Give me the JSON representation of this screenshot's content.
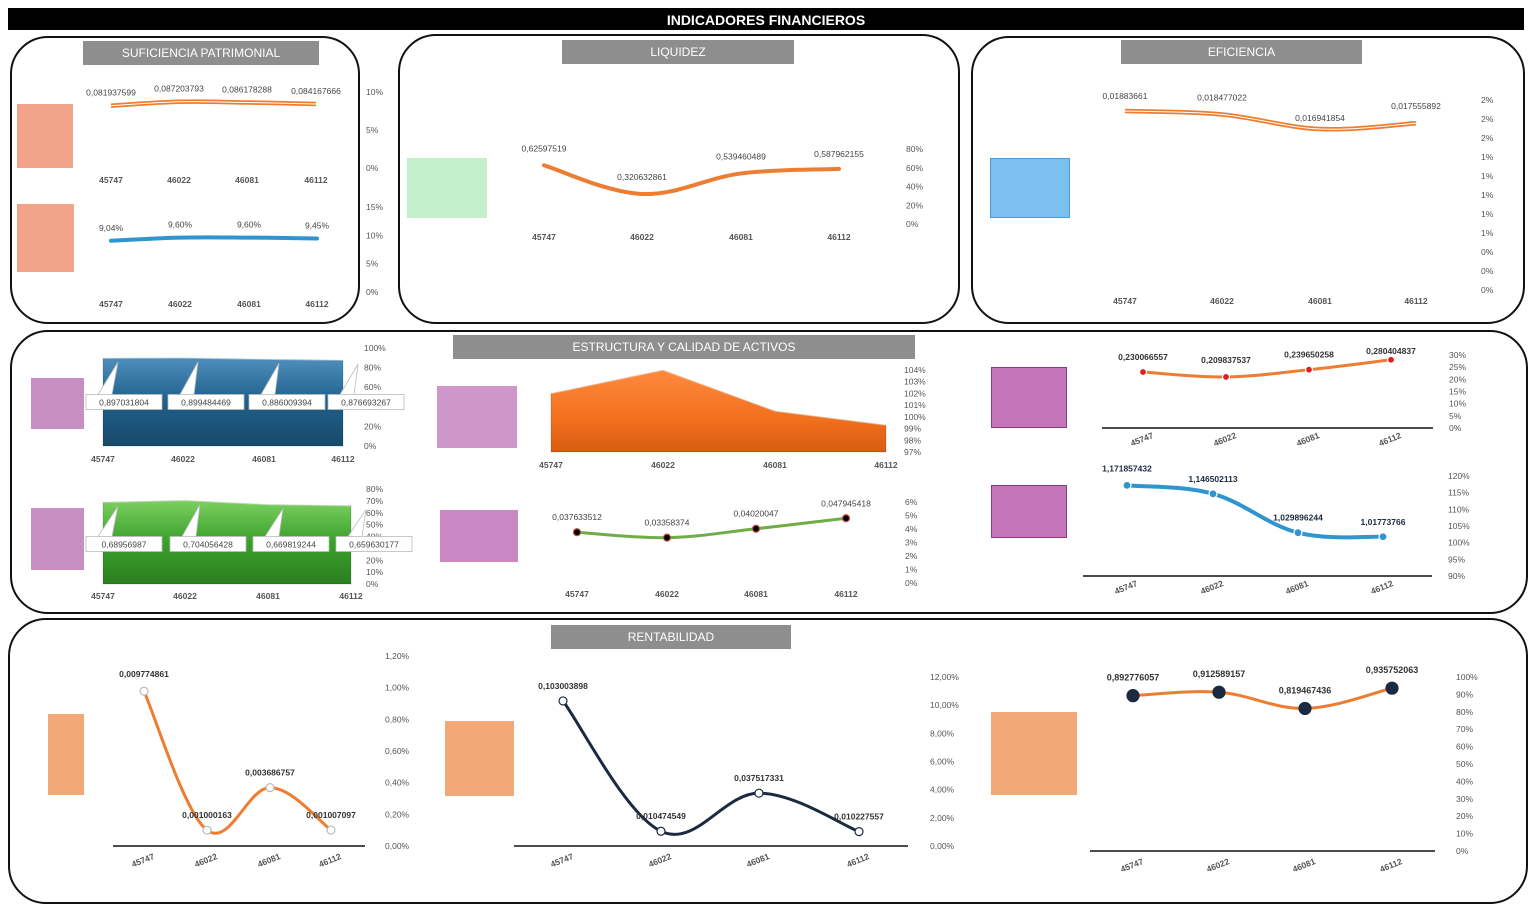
{
  "header": {
    "title": "INDICADORES FINANCIEROS"
  },
  "sections": {
    "suficiencia": "SUFICIENCIA PATRIMONIAL",
    "liquidez": "LIQUIDEZ",
    "eficiencia": "EFICIENCIA",
    "estructura": "ESTRUCTURA Y CALIDAD DE ACTIVOS",
    "rentabilidad": "RENTABILIDAD"
  },
  "colors": {
    "orange": "#ed7d31",
    "blue": "#2e95cf",
    "green": "#70ad47",
    "navy": "#1b2a41",
    "steel": "#1f5f8a",
    "bright_green": "#3aa02b",
    "salmon": "#f4a584",
    "mint": "#c3f0cb",
    "sky": "#7cc0ef",
    "mauve": "#c987c3",
    "peach": "#f3a877"
  },
  "chart_data": [
    {
      "id": "suf1",
      "type": "line",
      "categories": [
        "45747",
        "46022",
        "46081",
        "46112"
      ],
      "series": [
        {
          "values": [
            0.081937599,
            0.087203793,
            0.086178288,
            0.084167666
          ]
        }
      ],
      "labels": [
        "0,081937599",
        "0,087203793",
        "0,086178288",
        "0,084167666"
      ],
      "yticks": [
        "10%",
        "5%",
        "0%"
      ],
      "ylim": [
        0,
        0.1
      ]
    },
    {
      "id": "suf2",
      "type": "line",
      "categories": [
        "45747",
        "46022",
        "46081",
        "46112"
      ],
      "series": [
        {
          "values": [
            0.0904,
            0.096,
            0.096,
            0.0945
          ]
        }
      ],
      "labels": [
        "9,04%",
        "9,60%",
        "9,60%",
        "9,45%"
      ],
      "yticks": [
        "15%",
        "10%",
        "5%",
        "0%"
      ],
      "ylim": [
        0,
        0.15
      ]
    },
    {
      "id": "liq",
      "type": "line",
      "categories": [
        "45747",
        "46022",
        "46081",
        "46112"
      ],
      "series": [
        {
          "values": [
            0.62597519,
            0.320632861,
            0.539460489,
            0.587962155
          ]
        }
      ],
      "labels": [
        "0,62597519",
        "0,320632861",
        "0,539460489",
        "0,587962155"
      ],
      "yticks": [
        "80%",
        "60%",
        "40%",
        "20%",
        "0%"
      ],
      "ylim": [
        0,
        0.8
      ]
    },
    {
      "id": "efi",
      "type": "line",
      "categories": [
        "45747",
        "46022",
        "46081",
        "46112"
      ],
      "series": [
        {
          "values": [
            0.01883661,
            0.018477022,
            0.016941854,
            0.017555892
          ]
        }
      ],
      "labels": [
        "0,01883661",
        "0,018477022",
        "0,016941854",
        "0,017555892"
      ],
      "yticks": [
        "2%",
        "2%",
        "2%",
        "1%",
        "1%",
        "1%",
        "1%",
        "1%",
        "0%",
        "0%",
        "0%"
      ],
      "ylim": [
        0,
        0.02
      ]
    },
    {
      "id": "est1",
      "type": "area",
      "categories": [
        "45747",
        "46022",
        "46081",
        "46112"
      ],
      "series": [
        {
          "values": [
            0.897031804,
            0.899484469,
            0.886009394,
            0.876693267
          ]
        }
      ],
      "labels": [
        "0,897031804",
        "0,899484469",
        "0,886009394",
        "0,876693267"
      ],
      "yticks": [
        "100%",
        "80%",
        "60%",
        "40%",
        "20%",
        "0%"
      ],
      "ylim": [
        0,
        1
      ]
    },
    {
      "id": "est2",
      "type": "area",
      "categories": [
        "45747",
        "46022",
        "46081",
        "46112"
      ],
      "series": [
        {
          "values": [
            0.68956987,
            0.704056428,
            0.669819244,
            0.659630177
          ]
        }
      ],
      "labels": [
        "0,68956987",
        "0,704056428",
        "0,669819244",
        "0,659630177"
      ],
      "yticks": [
        "80%",
        "70%",
        "60%",
        "50%",
        "40%",
        "30%",
        "20%",
        "10%",
        "0%"
      ],
      "ylim": [
        0,
        0.8
      ]
    },
    {
      "id": "est3",
      "type": "area",
      "categories": [
        "45747",
        "46022",
        "46081",
        "46112"
      ],
      "series": [
        {
          "values": [
            1.02,
            1.04,
            1.005,
            0.993
          ]
        }
      ],
      "yticks": [
        "104%",
        "103%",
        "102%",
        "101%",
        "100%",
        "99%",
        "98%",
        "97%"
      ],
      "ylim": [
        0.97,
        1.04
      ]
    },
    {
      "id": "est4",
      "type": "line",
      "categories": [
        "45747",
        "46022",
        "46081",
        "46112"
      ],
      "series": [
        {
          "values": [
            0.037633512,
            0.03358374,
            0.04020047,
            0.047945418
          ]
        }
      ],
      "labels": [
        "0,037633512",
        "0,03358374",
        "0,04020047",
        "0,047945418"
      ],
      "yticks": [
        "6%",
        "5%",
        "4%",
        "3%",
        "2%",
        "1%",
        "0%"
      ],
      "ylim": [
        0,
        0.06
      ]
    },
    {
      "id": "est5",
      "type": "line",
      "categories": [
        "45747",
        "46022",
        "46081",
        "46112"
      ],
      "series": [
        {
          "values": [
            0.230066557,
            0.209837537,
            0.239650258,
            0.280404837
          ]
        }
      ],
      "labels": [
        "0,230066557",
        "0,209837537",
        "0,239650258",
        "0,280404837"
      ],
      "yticks": [
        "30%",
        "25%",
        "20%",
        "15%",
        "10%",
        "5%",
        "0%"
      ],
      "ylim": [
        0,
        0.3
      ]
    },
    {
      "id": "est6",
      "type": "line",
      "categories": [
        "45747",
        "46022",
        "46081",
        "46112"
      ],
      "series": [
        {
          "values": [
            1.171857432,
            1.146502113,
            1.029896244,
            1.01773766
          ]
        }
      ],
      "labels": [
        "1,171857432",
        "1,146502113",
        "1,029896244",
        "1,01773766"
      ],
      "yticks": [
        "120%",
        "115%",
        "110%",
        "105%",
        "100%",
        "95%",
        "90%"
      ],
      "ylim": [
        0.9,
        1.2
      ]
    },
    {
      "id": "ren1",
      "type": "line",
      "categories": [
        "45747",
        "46022",
        "46081",
        "46112"
      ],
      "series": [
        {
          "values": [
            0.009774861,
            0.001000163,
            0.003686757,
            0.001007097
          ]
        }
      ],
      "labels": [
        "0,009774861",
        "0,001000163",
        "0,003686757",
        "0,001007097"
      ],
      "yticks": [
        "1,20%",
        "1,00%",
        "0,80%",
        "0,60%",
        "0,40%",
        "0,20%",
        "0,00%"
      ],
      "ylim": [
        0,
        0.012
      ]
    },
    {
      "id": "ren2",
      "type": "line",
      "categories": [
        "45747",
        "46022",
        "46081",
        "46112"
      ],
      "series": [
        {
          "values": [
            0.103003898,
            0.010474549,
            0.037517331,
            0.010227557
          ]
        }
      ],
      "labels": [
        "0,103003898",
        "0,010474549",
        "0,037517331",
        "0,010227557"
      ],
      "yticks": [
        "12,00%",
        "10,00%",
        "8,00%",
        "6,00%",
        "4,00%",
        "2,00%",
        "0,00%"
      ],
      "ylim": [
        0,
        0.12
      ]
    },
    {
      "id": "ren3",
      "type": "line",
      "categories": [
        "45747",
        "46022",
        "46081",
        "46112"
      ],
      "series": [
        {
          "values": [
            0.892776057,
            0.912589157,
            0.819467436,
            0.935752063
          ]
        }
      ],
      "labels": [
        "0,892776057",
        "0,912589157",
        "0,819467436",
        "0,935752063"
      ],
      "yticks": [
        "100%",
        "90%",
        "80%",
        "70%",
        "60%",
        "50%",
        "40%",
        "30%",
        "20%",
        "10%",
        "0%"
      ],
      "ylim": [
        0,
        1
      ]
    }
  ]
}
